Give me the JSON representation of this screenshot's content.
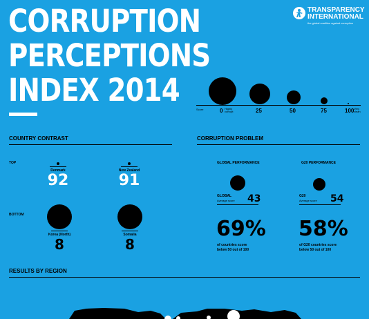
{
  "title": {
    "line1": "CORRUPTION",
    "line2": "PERCEPTIONS",
    "line3": "INDEX 2014"
  },
  "logo": {
    "line1": "TRANSPARENCY",
    "line2": "INTERNATIONAL",
    "tagline": "the global coalition against corruption"
  },
  "scale": {
    "label": "Score",
    "left_note": "Highly corrupt",
    "right_note": "Very clean",
    "ticks": [
      "0",
      "25",
      "50",
      "75",
      "100"
    ]
  },
  "country_contrast": {
    "heading": "COUNTRY CONTRAST",
    "top_label": "TOP",
    "bottom_label": "BOTTOM",
    "top": [
      {
        "name": "Denmark",
        "score": "92"
      },
      {
        "name": "New Zealand",
        "score": "91"
      }
    ],
    "bottom": [
      {
        "name": "Korea (North)",
        "score": "8"
      },
      {
        "name": "Somalia",
        "score": "8"
      }
    ]
  },
  "corruption_problem": {
    "heading": "CORRUPTION PROBLEM",
    "global": {
      "title": "GLOBAL PERFORMANCE",
      "label": "GLOBAL",
      "sublabel": "Average score",
      "score": "43",
      "pct": "69%",
      "desc1": "of countries score",
      "desc2": "below 50 out of 100"
    },
    "g20": {
      "title": "G20 PERFORMANCE",
      "label": "G20",
      "sublabel": "Average score",
      "score": "54",
      "pct": "58%",
      "desc1": "of G20 countries score",
      "desc2": "below 50 out of 100"
    }
  },
  "results": {
    "heading": "RESULTS BY REGION"
  },
  "colors": {
    "background": "#1aa1e2",
    "ink": "#000000",
    "white": "#ffffff"
  },
  "chart_data": {
    "type": "scatter",
    "title": "CORRUPTION PERCEPTIONS INDEX 2014",
    "xlabel": "Score",
    "xlim": [
      0,
      100
    ],
    "scale_points": [
      0,
      25,
      50,
      75,
      100
    ],
    "country_scores": [
      {
        "name": "Denmark",
        "score": 92,
        "group": "TOP"
      },
      {
        "name": "New Zealand",
        "score": 91,
        "group": "TOP"
      },
      {
        "name": "Korea (North)",
        "score": 8,
        "group": "BOTTOM"
      },
      {
        "name": "Somalia",
        "score": 8,
        "group": "BOTTOM"
      }
    ],
    "averages": [
      {
        "name": "GLOBAL",
        "score": 43
      },
      {
        "name": "G20",
        "score": 54
      }
    ],
    "shares_below_50": [
      {
        "name": "countries",
        "percent": 69
      },
      {
        "name": "G20 countries",
        "percent": 58
      }
    ]
  }
}
